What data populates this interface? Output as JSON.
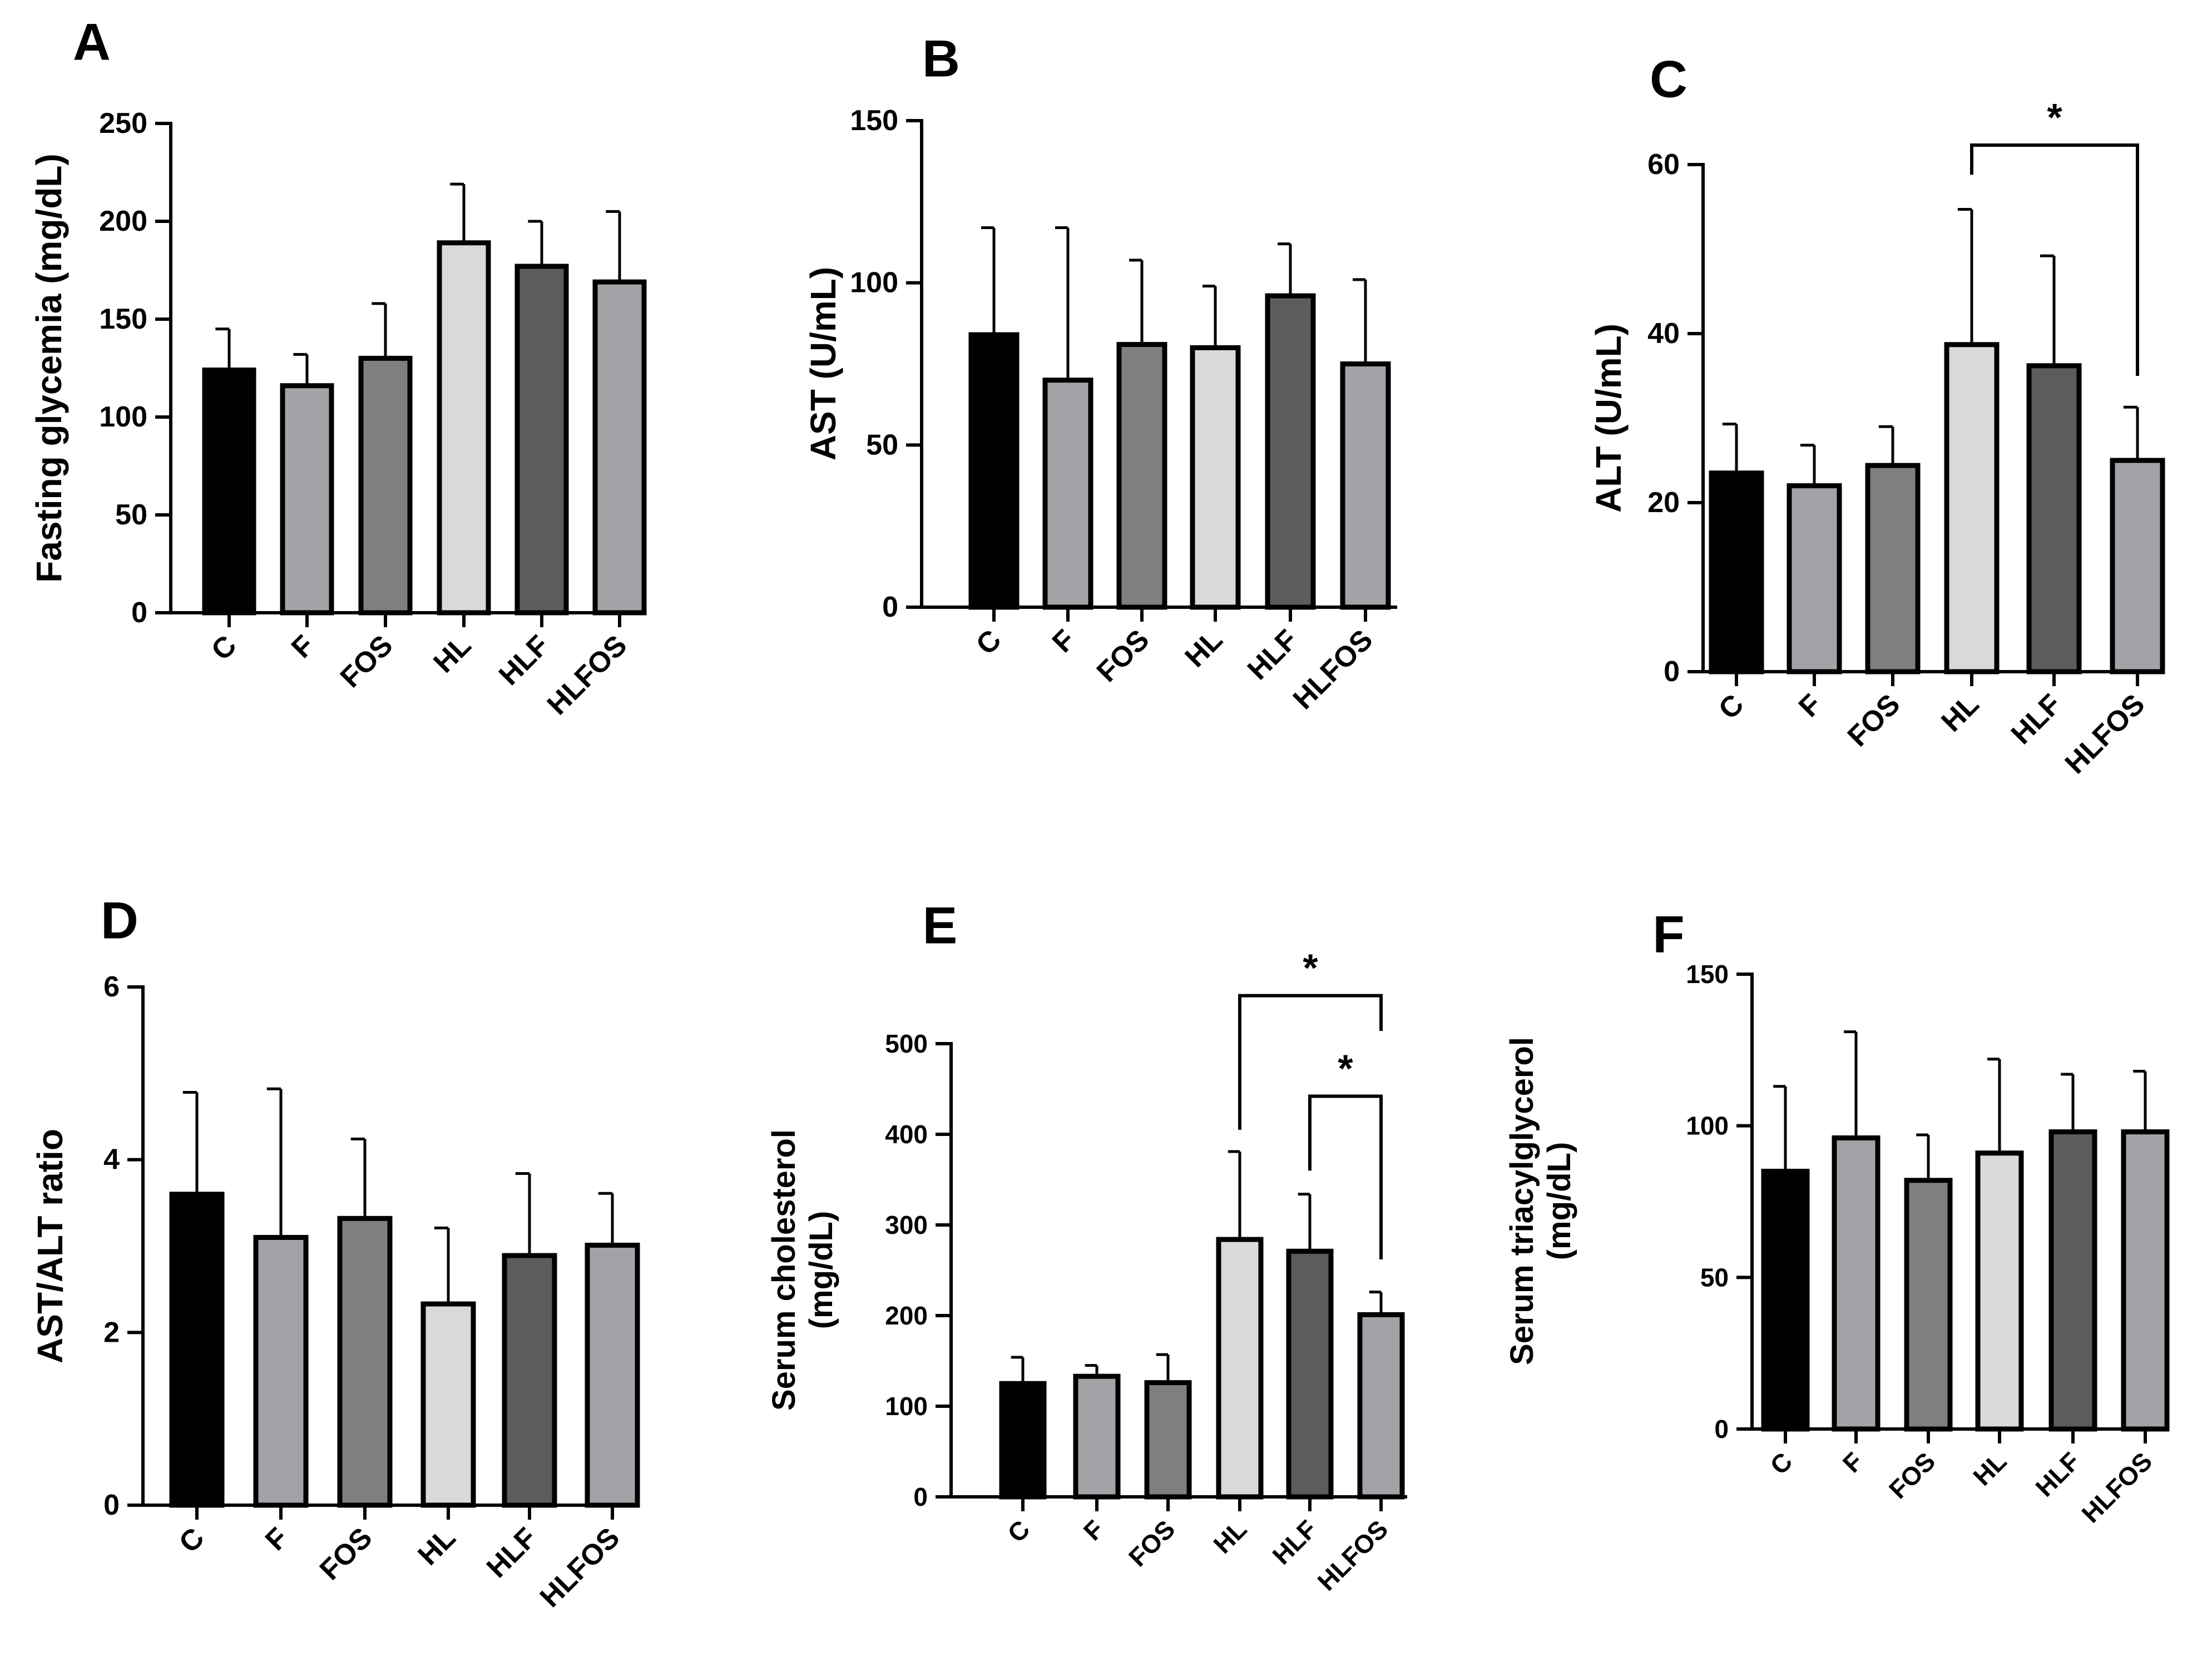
{
  "chart_data": [
    {
      "panel_label": "A",
      "type": "bar",
      "title": "",
      "xlabel": "",
      "ylabel_lines": [
        "Fasting glycemia (mg/dL)"
      ],
      "categories": [
        "C",
        "F",
        "FOS",
        "HL",
        "HLF",
        "HLFOS"
      ],
      "values": [
        124,
        116,
        130,
        189,
        177,
        169
      ],
      "errors": [
        21,
        16,
        28,
        30,
        23,
        36
      ],
      "ylim": [
        0,
        250
      ],
      "yticks": [
        "0",
        "50",
        "100",
        "150",
        "200",
        "250"
      ],
      "significance": []
    },
    {
      "panel_label": "B",
      "type": "bar",
      "title": "",
      "xlabel": "",
      "ylabel_lines": [
        "AST (U/mL)"
      ],
      "categories": [
        "C",
        "F",
        "FOS",
        "HL",
        "HLF",
        "HLFOS"
      ],
      "values": [
        84,
        70,
        81,
        80,
        96,
        75
      ],
      "errors": [
        33,
        47,
        26,
        19,
        16,
        26
      ],
      "ylim": [
        0,
        150
      ],
      "yticks": [
        "0",
        "50",
        "100",
        "150"
      ],
      "significance": []
    },
    {
      "panel_label": "C",
      "type": "bar",
      "title": "",
      "xlabel": "",
      "ylabel_lines": [
        "ALT (U/mL)"
      ],
      "categories": [
        "C",
        "F",
        "FOS",
        "HL",
        "HLF",
        "HLFOS"
      ],
      "values": [
        23.5,
        22,
        24.4,
        38.7,
        36.2,
        25
      ],
      "errors": [
        5.8,
        4.8,
        4.6,
        16,
        13,
        6.3
      ],
      "ylim": [
        0,
        60
      ],
      "yticks": [
        "0",
        "20",
        "40",
        "60"
      ],
      "significance": [
        {
          "from": 3,
          "to": 5,
          "label": "*",
          "y": 62.3,
          "left_end": 58.8,
          "right_end": 35
        }
      ]
    },
    {
      "panel_label": "D",
      "type": "bar",
      "title": "",
      "xlabel": "",
      "ylabel_lines": [
        "AST/ALT ratio"
      ],
      "categories": [
        "C",
        "F",
        "FOS",
        "HL",
        "HLF",
        "HLFOS"
      ],
      "values": [
        3.6,
        3.1,
        3.32,
        2.33,
        2.89,
        3.01
      ],
      "errors": [
        1.18,
        1.72,
        0.92,
        0.88,
        0.95,
        0.6
      ],
      "ylim": [
        0,
        6
      ],
      "yticks": [
        "0",
        "2",
        "4",
        "6"
      ],
      "significance": []
    },
    {
      "panel_label": "E",
      "type": "bar",
      "title": "",
      "xlabel": "",
      "ylabel_lines": [
        "Serum cholesterol",
        "(mg/dL)"
      ],
      "categories": [
        "C",
        "F",
        "FOS",
        "HL",
        "HLF",
        "HLFOS"
      ],
      "values": [
        125,
        133,
        126,
        284,
        271,
        201
      ],
      "errors": [
        29,
        12,
        31,
        97,
        63,
        25
      ],
      "ylim": [
        0,
        500
      ],
      "yticks": [
        "0",
        "100",
        "200",
        "300",
        "400",
        "500"
      ],
      "significance": [
        {
          "from": 3,
          "to": 5,
          "label": "*",
          "y": 553,
          "left_end": 405,
          "right_end": 514
        },
        {
          "from": 4,
          "to": 5,
          "label": "*",
          "y": 442,
          "left_end": 360,
          "right_end": 262
        }
      ]
    },
    {
      "panel_label": "F",
      "type": "bar",
      "title": "",
      "xlabel": "",
      "ylabel_lines": [
        "Serum triacylglycerol",
        "(mg/dL)"
      ],
      "categories": [
        "C",
        "F",
        "FOS",
        "HL",
        "HLF",
        "HLFOS"
      ],
      "values": [
        85,
        96,
        82,
        91,
        98,
        98
      ],
      "errors": [
        28,
        35,
        15,
        31,
        19,
        20
      ],
      "ylim": [
        0,
        150
      ],
      "yticks": [
        "0",
        "50",
        "100",
        "150"
      ],
      "significance": []
    }
  ],
  "bar_colors": [
    "#000000",
    "#a2a2a7",
    "#7f7f7f",
    "#d9d9d9",
    "#5c5c5c",
    "#a2a2a7"
  ]
}
